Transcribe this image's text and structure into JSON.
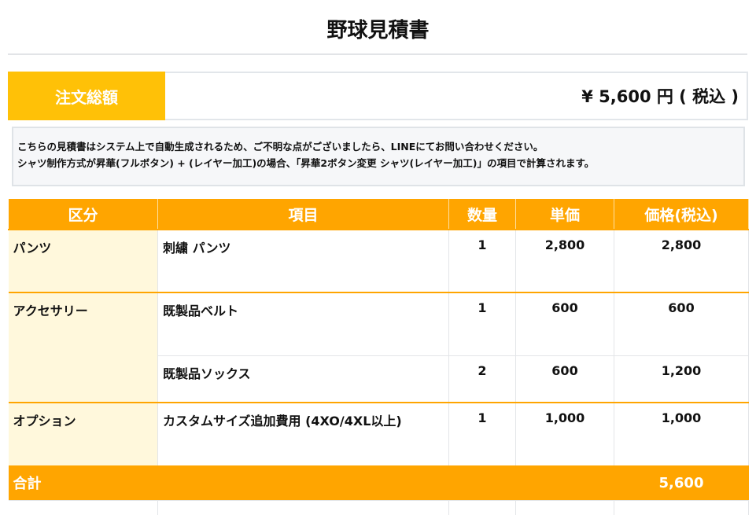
{
  "title": "野球見積書",
  "total": {
    "label": "注文総額",
    "value": "¥ 5,600 円 ( 税込 )"
  },
  "notice": [
    "こちらの見積書はシステム上で自動生成されるため、ご不明な点がございましたら、LINEにてお問い合わせください。",
    "シャツ制作方式が昇華(フルボタン) + (レイヤー加工)の場合、「昇華2ボタン変更 シャツ(レイヤー加工)」の項目で計算されます。"
  ],
  "table": {
    "headers": [
      "区分",
      "項目",
      "数量",
      "単価",
      "価格(税込)"
    ],
    "rows": [
      {
        "category": "パンツ",
        "item": "刺繍 パンツ",
        "qty": "1",
        "unit": "2,800",
        "price": "2,800"
      },
      {
        "category": "アクセサリー",
        "item": "既製品ベルト",
        "qty": "1",
        "unit": "600",
        "price": "600"
      },
      {
        "category": "",
        "item": "既製品ソックス",
        "qty": "2",
        "unit": "600",
        "price": "1,200"
      },
      {
        "category": "オプション",
        "item": "カスタムサイズ追加費用 (4XO/4XL以上)",
        "qty": "1",
        "unit": "1,000",
        "price": "1,000"
      }
    ],
    "sum_label": "合計",
    "sum_value": "5,600"
  },
  "colors": {
    "header": "#ffa500",
    "total_label": "#ffc107",
    "category_bg": "#fff8dc"
  }
}
